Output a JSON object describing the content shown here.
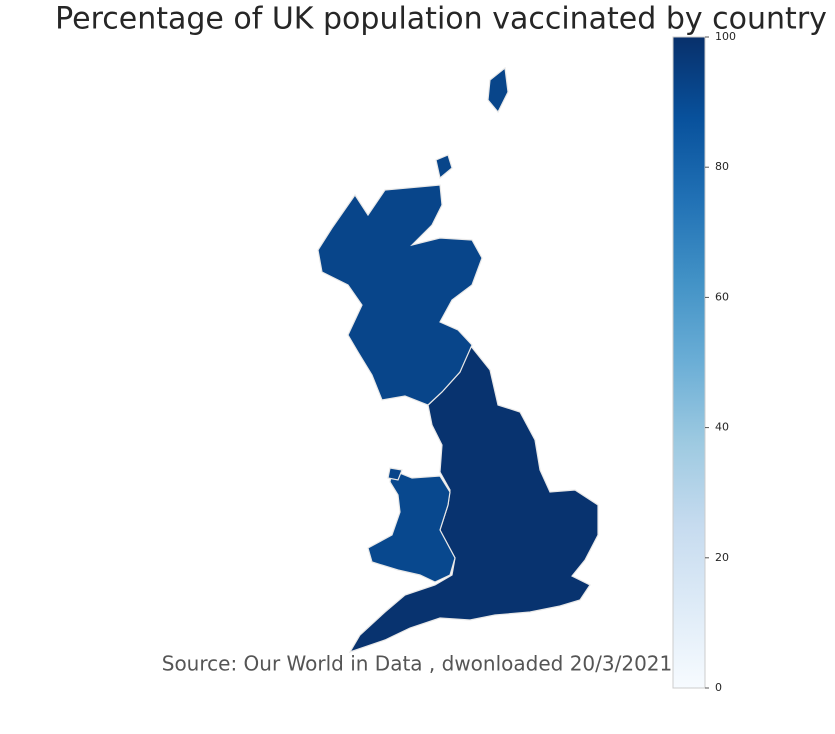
{
  "chart_data": {
    "type": "choropleth",
    "title": "Percentage of UK population vaccinated by country",
    "annotation": "Source: Our World in Data , dwonloaded 20/3/2021",
    "values": [
      99,
      92,
      91
    ],
    "colorscale": [
      "#f7fbff",
      "#deebf7",
      "#c6dbef",
      "#9ecae1",
      "#6baed6",
      "#4292c6",
      "#2171b5",
      "#08519c",
      "#08306b"
    ],
    "clim": [
      0,
      100
    ],
    "cticks": [
      0,
      20,
      40,
      60,
      80,
      100
    ]
  }
}
